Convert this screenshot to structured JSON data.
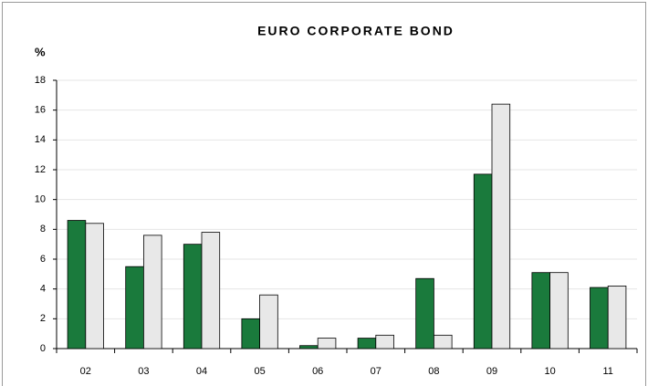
{
  "chart_data": {
    "type": "bar",
    "title": "EURO CORPORATE BOND",
    "y_label": "%",
    "categories": [
      "02",
      "03",
      "04",
      "05",
      "06",
      "07",
      "08",
      "09",
      "10",
      "11"
    ],
    "series": [
      {
        "color": "#1a7a3c",
        "values": [
          8.6,
          5.5,
          7.0,
          2.0,
          0.2,
          0.7,
          4.7,
          11.7,
          5.1,
          4.1
        ]
      },
      {
        "color": "#e8e8e8",
        "values": [
          8.4,
          7.6,
          7.8,
          3.6,
          0.7,
          0.9,
          0.9,
          16.4,
          5.1,
          4.2
        ]
      }
    ],
    "ylim": [
      0,
      18
    ],
    "yticks": [
      0,
      2,
      4,
      6,
      8,
      10,
      12,
      14,
      16,
      18
    ],
    "grid": true
  }
}
